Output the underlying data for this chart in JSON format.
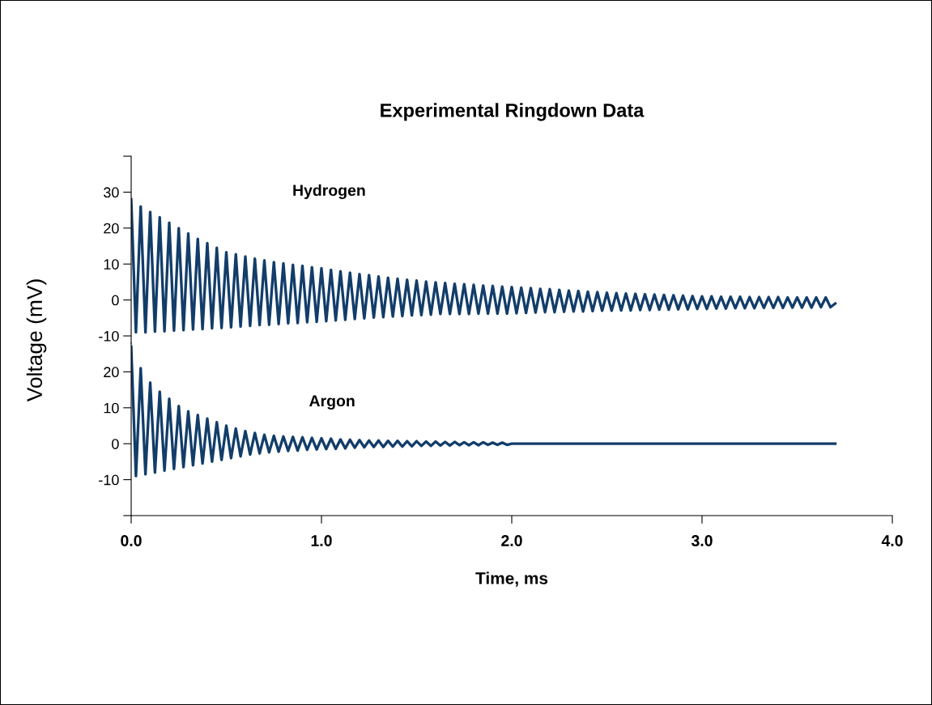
{
  "chart_data": [
    {
      "type": "line",
      "title": "Experimental Ringdown Data",
      "ylabel": "Voltage (mV)",
      "tick_labels": "y",
      "grid": false,
      "legend": false,
      "xlim": [
        0,
        4
      ],
      "ylim": [
        -12,
        40
      ],
      "yticks": [
        {
          "value": 40,
          "label": null
        },
        30,
        20,
        10,
        0,
        -10
      ],
      "series": [
        {
          "name": "Hydrogen",
          "color": "#123d6a",
          "x": [
            0,
            0.025,
            0.05,
            0.075,
            0.1,
            0.125,
            0.15,
            0.175,
            0.2,
            0.225,
            0.25,
            0.275,
            0.3,
            0.325,
            0.35,
            0.375,
            0.4,
            0.425,
            0.45,
            0.475,
            0.5,
            0.525,
            0.55,
            0.575,
            0.6,
            0.625,
            0.65,
            0.675,
            0.7,
            0.725,
            0.75,
            0.775,
            0.8,
            0.825,
            0.85,
            0.875,
            0.9,
            0.925,
            0.95,
            0.975,
            1.0,
            1.025,
            1.05,
            1.075,
            1.1,
            1.125,
            1.15,
            1.175,
            1.2,
            1.225,
            1.25,
            1.275,
            1.3,
            1.325,
            1.35,
            1.375,
            1.4,
            1.425,
            1.45,
            1.475,
            1.5,
            1.525,
            1.55,
            1.575,
            1.6,
            1.625,
            1.65,
            1.675,
            1.7,
            1.725,
            1.75,
            1.775,
            1.8,
            1.825,
            1.85,
            1.875,
            1.9,
            1.925,
            1.95,
            1.975,
            2.0,
            2.025,
            2.05,
            2.075,
            2.1,
            2.125,
            2.15,
            2.175,
            2.2,
            2.225,
            2.25,
            2.275,
            2.3,
            2.325,
            2.35,
            2.375,
            2.4,
            2.425,
            2.45,
            2.475,
            2.5,
            2.525,
            2.55,
            2.575,
            2.6,
            2.625,
            2.65,
            2.675,
            2.7,
            2.725,
            2.75,
            2.775,
            2.8,
            2.825,
            2.85,
            2.875,
            2.9,
            2.925,
            2.95,
            2.975,
            3.0,
            3.025,
            3.05,
            3.075,
            3.1,
            3.125,
            3.15,
            3.175,
            3.2,
            3.225,
            3.25,
            3.275,
            3.3,
            3.325,
            3.35,
            3.375,
            3.4,
            3.425,
            3.45,
            3.475,
            3.5,
            3.525,
            3.55,
            3.575,
            3.6,
            3.625,
            3.65,
            3.675,
            3.7
          ],
          "values": [
            28,
            -9,
            26,
            -9,
            24.5,
            -8.8,
            23,
            -8.7,
            21.5,
            -8.5,
            20,
            -8.4,
            18.5,
            -8.2,
            17,
            -8.1,
            15.8,
            -7.9,
            14.5,
            -7.8,
            13.3,
            -7.6,
            12.7,
            -7.4,
            12.1,
            -7.2,
            11.5,
            -7,
            11,
            -6.9,
            10.5,
            -6.7,
            10.2,
            -6.5,
            9.8,
            -6.4,
            9.5,
            -6.2,
            9.1,
            -6.1,
            8.8,
            -5.9,
            8.4,
            -5.7,
            8,
            -5.5,
            7.6,
            -5.3,
            7.2,
            -5.1,
            6.9,
            -4.9,
            6.5,
            -4.8,
            6.2,
            -4.6,
            5.9,
            -4.5,
            5.6,
            -4.3,
            5.4,
            -4.2,
            5.1,
            -4.1,
            4.9,
            -3.9,
            4.7,
            -3.9,
            4.5,
            -3.9,
            4.4,
            -3.9,
            4.2,
            -3.8,
            4,
            -3.8,
            3.9,
            -3.8,
            3.7,
            -3.8,
            3.6,
            -3.7,
            3.4,
            -3.6,
            3.3,
            -3.5,
            3.1,
            -3.4,
            3,
            -3.4,
            2.8,
            -3.3,
            2.6,
            -3.2,
            2.5,
            -3.2,
            2.3,
            -3.1,
            2.2,
            -3,
            2,
            -3,
            1.9,
            -2.9,
            1.8,
            -2.9,
            1.7,
            -2.8,
            1.6,
            -2.8,
            1.5,
            -2.7,
            1.4,
            -2.7,
            1.3,
            -2.6,
            1.2,
            -2.6,
            1.1,
            -2.5,
            1,
            -2.5,
            1,
            -2.4,
            0.9,
            -2.4,
            0.9,
            -2.3,
            0.9,
            -2.3,
            0.8,
            -2.3,
            0.8,
            -2.2,
            0.8,
            -2.2,
            0.8,
            -2.2,
            0.7,
            -2.1,
            0.7,
            -2.1,
            0.7,
            -2.1,
            0.7,
            -2,
            0.7,
            -2,
            -1
          ]
        }
      ]
    },
    {
      "type": "line",
      "xlabel": "Time, ms",
      "grid": false,
      "legend": false,
      "xlim": [
        0,
        4
      ],
      "xticks": [
        {
          "value": 0,
          "label": "0.0"
        },
        {
          "value": 1,
          "label": "1.0"
        },
        {
          "value": 2,
          "label": "2.0"
        },
        {
          "value": 3,
          "label": "3.0"
        },
        {
          "value": 4,
          "label": "4.0"
        }
      ],
      "ylim": [
        -20,
        28
      ],
      "yticks": [
        20,
        10,
        0,
        -10,
        {
          "value": -20,
          "label": null
        }
      ],
      "series": [
        {
          "name": "Argon",
          "color": "#123d6a",
          "x": [
            0,
            0.025,
            0.05,
            0.075,
            0.1,
            0.125,
            0.15,
            0.175,
            0.2,
            0.225,
            0.25,
            0.275,
            0.3,
            0.325,
            0.35,
            0.375,
            0.4,
            0.425,
            0.45,
            0.475,
            0.5,
            0.525,
            0.55,
            0.575,
            0.6,
            0.625,
            0.65,
            0.675,
            0.7,
            0.725,
            0.75,
            0.775,
            0.8,
            0.825,
            0.85,
            0.875,
            0.9,
            0.925,
            0.95,
            0.975,
            1.0,
            1.025,
            1.05,
            1.075,
            1.1,
            1.125,
            1.15,
            1.175,
            1.2,
            1.225,
            1.25,
            1.275,
            1.3,
            1.325,
            1.35,
            1.375,
            1.4,
            1.425,
            1.45,
            1.475,
            1.5,
            1.525,
            1.55,
            1.575,
            1.6,
            1.625,
            1.65,
            1.675,
            1.7,
            1.725,
            1.75,
            1.775,
            1.8,
            1.825,
            1.85,
            1.875,
            1.9,
            1.925,
            1.95,
            1.975,
            2.0,
            3.7
          ],
          "values": [
            27,
            -9,
            21,
            -8.5,
            17,
            -8,
            14.5,
            -7.5,
            12.5,
            -7,
            10.5,
            -6.5,
            9,
            -6,
            8,
            -5.5,
            7,
            -5,
            6,
            -4.5,
            5,
            -4,
            4.2,
            -3.5,
            3.5,
            -3,
            3,
            -2.7,
            2.5,
            -2.4,
            2.2,
            -2.2,
            2,
            -2,
            1.9,
            -1.9,
            1.8,
            -1.7,
            1.6,
            -1.6,
            1.5,
            -1.5,
            1.4,
            -1.4,
            1.2,
            -1.3,
            1.1,
            -1.1,
            1,
            -1,
            0.9,
            -0.9,
            0.9,
            -0.9,
            0.8,
            -0.8,
            0.8,
            -0.8,
            0.7,
            -0.7,
            0.7,
            -0.6,
            0.6,
            -0.6,
            0.6,
            -0.5,
            0.5,
            -0.5,
            0.5,
            -0.4,
            0.4,
            -0.4,
            0.4,
            -0.4,
            0.4,
            -0.3,
            0.3,
            -0.3,
            0.3,
            -0.3,
            0,
            0
          ]
        }
      ]
    }
  ]
}
